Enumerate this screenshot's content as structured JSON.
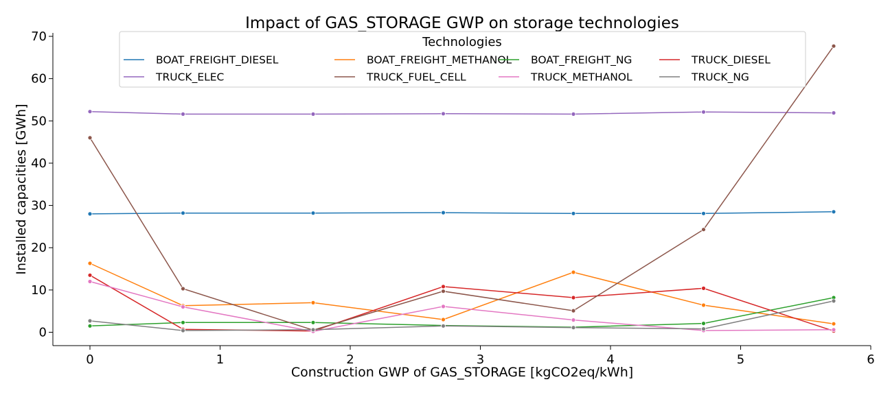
{
  "chart_data": {
    "type": "line",
    "title": "Impact of GAS_STORAGE GWP on storage technologies",
    "xlabel": "Construction GWP of GAS_STORAGE [kgCO2eq/kWh]",
    "ylabel": "Installed capacities [GWh]",
    "xlim": [
      -0.28,
      6
    ],
    "ylim": [
      -3,
      71
    ],
    "xticks": [
      0,
      1,
      2,
      3,
      4,
      5,
      6
    ],
    "yticks": [
      0,
      10,
      20,
      30,
      40,
      50,
      60,
      70
    ],
    "grid": false,
    "legend": {
      "title": "Technologies",
      "placement": "top-center",
      "columns": 4
    },
    "x": [
      0,
      0.715,
      1.715,
      2.715,
      3.715,
      4.715,
      5.715
    ],
    "series": [
      {
        "name": "BOAT_FREIGHT_DIESEL",
        "color": "#1f77b4",
        "values": [
          28.0,
          28.2,
          28.2,
          28.3,
          28.1,
          28.1,
          28.5
        ]
      },
      {
        "name": "BOAT_FREIGHT_METHANOL",
        "color": "#ff7f0e",
        "values": [
          16.3,
          6.3,
          7.0,
          3.0,
          14.2,
          6.4,
          2.0
        ]
      },
      {
        "name": "BOAT_FREIGHT_NG",
        "color": "#2ca02c",
        "values": [
          1.5,
          2.3,
          2.3,
          1.6,
          1.2,
          2.1,
          8.2
        ]
      },
      {
        "name": "TRUCK_DIESEL",
        "color": "#d62728",
        "values": [
          13.5,
          0.7,
          0.3,
          10.8,
          8.2,
          10.4,
          0.3
        ]
      },
      {
        "name": "TRUCK_ELEC",
        "color": "#9467bd",
        "values": [
          52.2,
          51.6,
          51.6,
          51.7,
          51.6,
          52.1,
          51.9
        ]
      },
      {
        "name": "TRUCK_FUEL_CELL",
        "color": "#8c564b",
        "values": [
          46.0,
          10.3,
          0.5,
          9.7,
          5.1,
          24.3,
          67.7
        ]
      },
      {
        "name": "TRUCK_METHANOL",
        "color": "#e377c2",
        "values": [
          12.0,
          6.0,
          0.2,
          6.1,
          2.9,
          0.4,
          0.6
        ]
      },
      {
        "name": "TRUCK_NG",
        "color": "#7f7f7f",
        "values": [
          2.7,
          0.4,
          0.6,
          1.5,
          1.1,
          0.8,
          7.4
        ]
      }
    ]
  }
}
